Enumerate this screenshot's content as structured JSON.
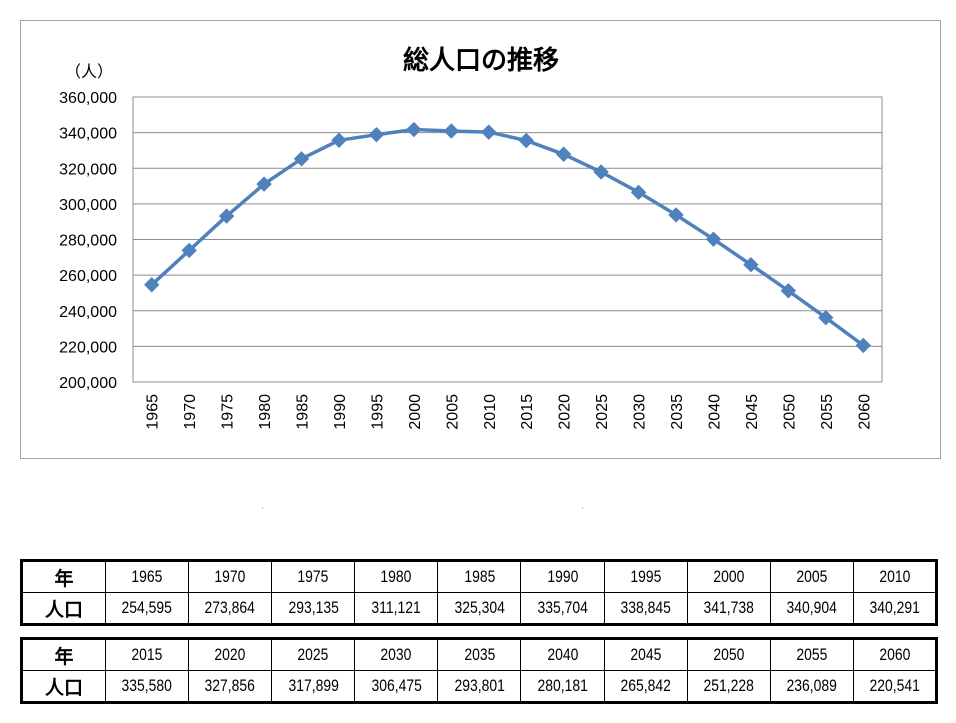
{
  "chart_data": {
    "type": "line",
    "title": "総人口の推移",
    "ylabel": "（人）",
    "xlabel": "",
    "ylim": [
      200000,
      360000
    ],
    "ytick_step": 20000,
    "ytick_labels": [
      "200,000",
      "220,000",
      "240,000",
      "260,000",
      "280,000",
      "300,000",
      "320,000",
      "340,000",
      "360,000"
    ],
    "grid": true,
    "legend": "none",
    "line_color": "#4f81bd",
    "categories": [
      "1965",
      "1970",
      "1975",
      "1980",
      "1985",
      "1990",
      "1995",
      "2000",
      "2005",
      "2010",
      "2015",
      "2020",
      "2025",
      "2030",
      "2035",
      "2040",
      "2045",
      "2050",
      "2055",
      "2060"
    ],
    "series": [
      {
        "values": [
          254595,
          273864,
          293135,
          311121,
          325304,
          335704,
          338845,
          341738,
          340904,
          340291,
          335580,
          327856,
          317899,
          306475,
          293801,
          280181,
          265842,
          251228,
          236089,
          220541
        ]
      }
    ]
  },
  "table": {
    "year_header": "年",
    "pop_header": "人口",
    "row1_years": [
      "1965",
      "1970",
      "1975",
      "1980",
      "1985",
      "1990",
      "1995",
      "2000",
      "2005",
      "2010"
    ],
    "row1_pops": [
      "254,595",
      "273,864",
      "293,135",
      "311,121",
      "325,304",
      "335,704",
      "338,845",
      "341,738",
      "340,904",
      "340,291"
    ],
    "row2_years": [
      "2015",
      "2020",
      "2025",
      "2030",
      "2035",
      "2040",
      "2045",
      "2050",
      "2055",
      "2060"
    ],
    "row2_pops": [
      "335,580",
      "327,856",
      "317,899",
      "306,475",
      "293,801",
      "280,181",
      "265,842",
      "251,228",
      "236,089",
      "220,541"
    ]
  }
}
